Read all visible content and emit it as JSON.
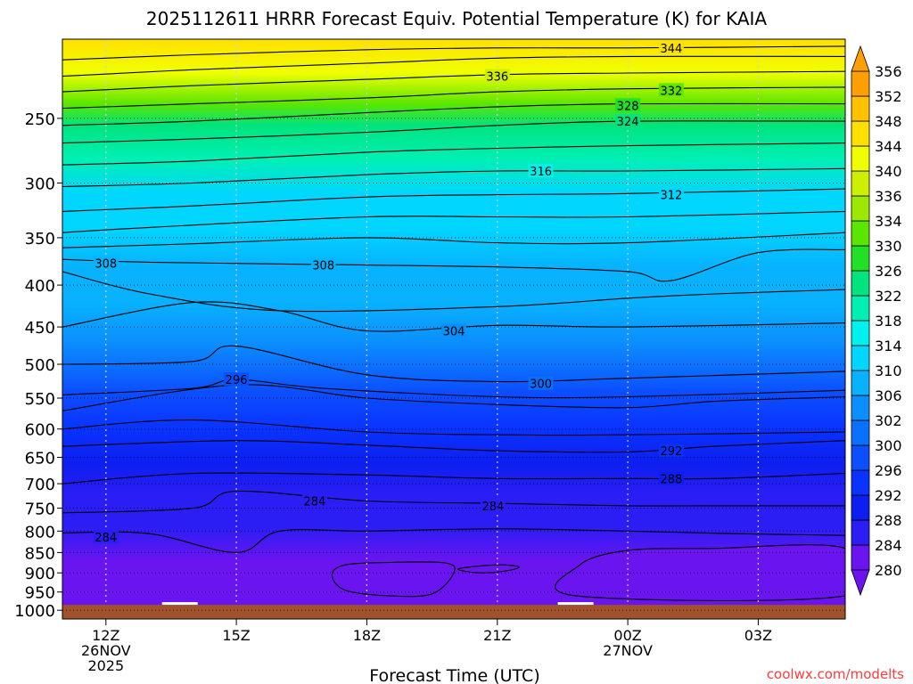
{
  "chart_data": {
    "type": "contour",
    "title": "2025112611 HRRR Forecast Equiv. Potential Temperature (K) for KAIA",
    "xlabel": "Forecast Time (UTC)",
    "ylabel": "",
    "credit": "coolwx.com/modelts",
    "x_ticks": [
      {
        "hour": 0,
        "label": "12Z",
        "sub": [
          "26NOV",
          "2025"
        ]
      },
      {
        "hour": 3,
        "label": "15Z",
        "sub": []
      },
      {
        "hour": 6,
        "label": "18Z",
        "sub": []
      },
      {
        "hour": 9,
        "label": "21Z",
        "sub": []
      },
      {
        "hour": 12,
        "label": "00Z",
        "sub": [
          "27NOV"
        ]
      },
      {
        "hour": 15,
        "label": "03Z",
        "sub": []
      }
    ],
    "xlim": [
      -1,
      17
    ],
    "ylim": [
      1025,
      200
    ],
    "y_scale": "log",
    "y_ticks": [
      250,
      300,
      350,
      400,
      450,
      500,
      550,
      600,
      650,
      700,
      750,
      800,
      850,
      900,
      950,
      1000
    ],
    "colorbar": {
      "levels": [
        280,
        284,
        288,
        292,
        296,
        300,
        302,
        306,
        310,
        314,
        318,
        322,
        326,
        330,
        334,
        336,
        340,
        344,
        348,
        352,
        356
      ],
      "colors": [
        "#6a14f0",
        "#2a1ef5",
        "#0c1ff0",
        "#0a33ff",
        "#0c4fff",
        "#0a70ff",
        "#0b8ffe",
        "#08b2ff",
        "#00d6ff",
        "#00f2ee",
        "#00f0b4",
        "#00e37e",
        "#22e026",
        "#5ae600",
        "#9be800",
        "#cfef00",
        "#f0ff00",
        "#ffe000",
        "#ffc100",
        "#ffa000"
      ],
      "extend": "both"
    },
    "ground_color": "#a0522d",
    "contours": [
      {
        "level": 284,
        "pts": [
          [
            -1,
            804
          ],
          [
            1,
            806
          ],
          [
            3,
            850
          ],
          [
            4,
            800
          ],
          [
            6,
            800
          ],
          [
            9,
            795
          ],
          [
            12,
            800
          ],
          [
            14,
            805
          ],
          [
            17,
            810
          ]
        ],
        "labels": [
          [
            0,
            814
          ]
        ]
      },
      {
        "level": 284,
        "pts": [
          [
            -1,
            760
          ],
          [
            2,
            750
          ],
          [
            3,
            715
          ],
          [
            6,
            735
          ],
          [
            9,
            740
          ],
          [
            12,
            745
          ],
          [
            14,
            745
          ],
          [
            17,
            745
          ]
        ],
        "labels": [
          [
            4.8,
            735
          ],
          [
            8.9,
            745
          ]
        ]
      },
      {
        "level": 288,
        "pts": [
          [
            -1,
            700
          ],
          [
            2,
            680
          ],
          [
            6,
            683
          ],
          [
            9,
            690
          ],
          [
            12,
            690
          ],
          [
            14,
            690
          ],
          [
            17,
            680
          ]
        ],
        "labels": [
          [
            13.0,
            690
          ]
        ]
      },
      {
        "level": 292,
        "pts": [
          [
            -1,
            630
          ],
          [
            3,
            620
          ],
          [
            6,
            628
          ],
          [
            9,
            638
          ],
          [
            12,
            640
          ],
          [
            14,
            630
          ],
          [
            17,
            620
          ]
        ],
        "labels": [
          [
            13.0,
            638
          ]
        ]
      },
      {
        "level": 296,
        "pts": [
          [
            -1,
            600
          ],
          [
            2,
            585
          ],
          [
            6,
            605
          ],
          [
            9,
            610
          ],
          [
            12,
            610
          ],
          [
            17,
            605
          ]
        ],
        "labels": []
      },
      {
        "level": 296,
        "pts": [
          [
            -1,
            570
          ],
          [
            3,
            530
          ],
          [
            6,
            550
          ],
          [
            9,
            560
          ],
          [
            12,
            565
          ],
          [
            14,
            555
          ],
          [
            17,
            548
          ]
        ],
        "labels": []
      },
      {
        "level": 296,
        "pts": [
          [
            -1,
            545
          ],
          [
            2,
            535
          ],
          [
            3,
            522
          ],
          [
            5,
            535
          ],
          [
            9,
            548
          ],
          [
            12,
            548
          ],
          [
            17,
            538
          ]
        ],
        "labels": [
          [
            3.0,
            522
          ]
        ]
      },
      {
        "level": 300,
        "pts": [
          [
            -1,
            500
          ],
          [
            2,
            496
          ],
          [
            3,
            475
          ],
          [
            6,
            515
          ],
          [
            9,
            525
          ],
          [
            12,
            520
          ],
          [
            17,
            510
          ]
        ],
        "labels": [
          [
            10.0,
            528
          ]
        ]
      },
      {
        "level": 304,
        "pts": [
          [
            -1,
            450
          ],
          [
            2,
            420
          ],
          [
            4,
            430
          ],
          [
            6,
            455
          ],
          [
            9,
            448
          ],
          [
            12,
            450
          ],
          [
            17,
            445
          ]
        ],
        "labels": [
          [
            8.0,
            455
          ]
        ]
      },
      {
        "level": 308,
        "pts": [
          [
            -1,
            385
          ],
          [
            1,
            410
          ],
          [
            4,
            430
          ],
          [
            9,
            425
          ],
          [
            12,
            415
          ],
          [
            14,
            410
          ],
          [
            17,
            405
          ]
        ],
        "labels": []
      },
      {
        "level": 308,
        "pts": [
          [
            -1,
            372
          ],
          [
            1,
            375
          ],
          [
            6,
            378
          ],
          [
            9,
            380
          ],
          [
            12,
            385
          ],
          [
            13,
            395
          ],
          [
            15,
            365
          ],
          [
            17,
            362
          ]
        ],
        "labels": [
          [
            0,
            376
          ],
          [
            5.0,
            378
          ]
        ]
      },
      {
        "level": 310,
        "pts": [
          [
            -1,
            360
          ],
          [
            2,
            356
          ],
          [
            6,
            350
          ],
          [
            9,
            355
          ],
          [
            12,
            355
          ],
          [
            17,
            345
          ]
        ],
        "labels": []
      },
      {
        "level": 312,
        "pts": [
          [
            -1,
            345
          ],
          [
            1,
            340
          ],
          [
            6,
            330
          ],
          [
            9,
            330
          ],
          [
            12,
            330
          ],
          [
            17,
            325
          ]
        ],
        "labels": []
      },
      {
        "level": 312,
        "pts": [
          [
            -1,
            325
          ],
          [
            2,
            320
          ],
          [
            6,
            312
          ],
          [
            9,
            310
          ],
          [
            12,
            309
          ],
          [
            17,
            305
          ]
        ],
        "labels": [
          [
            13.0,
            310
          ]
        ]
      },
      {
        "level": 316,
        "pts": [
          [
            -1,
            303
          ],
          [
            2,
            300
          ],
          [
            6,
            293
          ],
          [
            9,
            290
          ],
          [
            12,
            290
          ],
          [
            17,
            288
          ]
        ],
        "labels": [
          [
            10.0,
            290
          ]
        ]
      },
      {
        "level": 320,
        "pts": [
          [
            -1,
            285
          ],
          [
            2,
            282
          ],
          [
            6,
            275
          ],
          [
            9,
            272
          ],
          [
            12,
            270
          ],
          [
            17,
            268
          ]
        ],
        "labels": []
      },
      {
        "level": 324,
        "pts": [
          [
            -1,
            268
          ],
          [
            2,
            265
          ],
          [
            6,
            260
          ],
          [
            9,
            255
          ],
          [
            12,
            252
          ],
          [
            17,
            252
          ]
        ],
        "labels": [
          [
            12.0,
            252
          ]
        ]
      },
      {
        "level": 328,
        "pts": [
          [
            -1,
            255
          ],
          [
            2,
            252
          ],
          [
            6,
            246
          ],
          [
            9,
            242
          ],
          [
            12,
            240
          ],
          [
            17,
            240
          ]
        ],
        "labels": [
          [
            12.0,
            241
          ]
        ]
      },
      {
        "level": 332,
        "pts": [
          [
            -1,
            243
          ],
          [
            2,
            240
          ],
          [
            6,
            236
          ],
          [
            9,
            232
          ],
          [
            12,
            230
          ],
          [
            17,
            229
          ]
        ],
        "labels": [
          [
            13.0,
            231
          ]
        ]
      },
      {
        "level": 336,
        "pts": [
          [
            -1,
            232
          ],
          [
            2,
            228
          ],
          [
            6,
            224
          ],
          [
            9,
            221
          ],
          [
            12,
            220
          ],
          [
            17,
            219
          ]
        ],
        "labels": [
          [
            9.0,
            222
          ]
        ]
      },
      {
        "level": 340,
        "pts": [
          [
            -1,
            222
          ],
          [
            2,
            218
          ],
          [
            6,
            214
          ],
          [
            9,
            211
          ],
          [
            12,
            210
          ],
          [
            17,
            210
          ]
        ],
        "labels": []
      },
      {
        "level": 344,
        "pts": [
          [
            -1,
            212
          ],
          [
            2,
            209
          ],
          [
            6,
            206
          ],
          [
            9,
            205
          ],
          [
            12,
            205
          ],
          [
            17,
            204
          ]
        ],
        "labels": [
          [
            13.0,
            205
          ]
        ]
      }
    ],
    "closed_contours": [
      {
        "level": 280,
        "pts": [
          [
            5.2,
            905
          ],
          [
            5.5,
            880
          ],
          [
            6.5,
            874
          ],
          [
            7.8,
            875
          ],
          [
            8.0,
            900
          ],
          [
            7.5,
            955
          ],
          [
            6.5,
            960
          ],
          [
            5.5,
            945
          ]
        ]
      },
      {
        "level": 280,
        "pts": [
          [
            8.1,
            890
          ],
          [
            9.0,
            880
          ],
          [
            9.5,
            885
          ],
          [
            9.2,
            895
          ],
          [
            8.6,
            900
          ]
        ]
      },
      {
        "level": 280,
        "pts": [
          [
            10.8,
            960
          ],
          [
            10.9,
            880
          ],
          [
            12,
            845
          ],
          [
            14,
            840
          ],
          [
            17,
            840
          ],
          [
            17,
            960
          ]
        ]
      }
    ],
    "surface_markers": [
      {
        "hour": 1.7
      },
      {
        "hour": 10.8
      }
    ]
  }
}
